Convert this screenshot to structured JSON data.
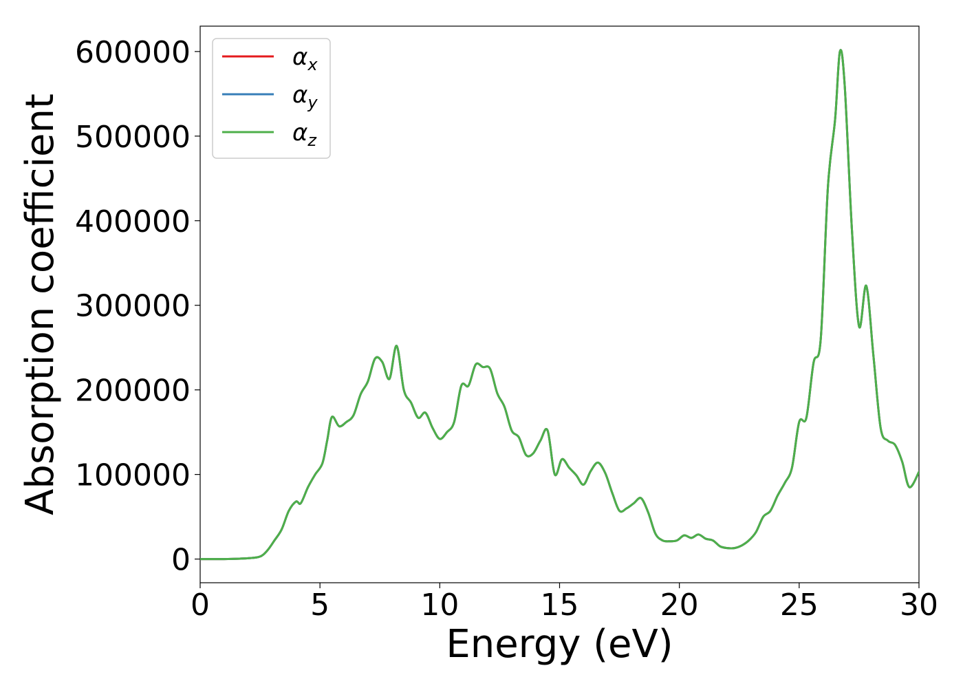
{
  "chart_data": {
    "type": "line",
    "title": "",
    "xlabel": "Energy (eV)",
    "ylabel": "Absorption coefficient",
    "xlim": [
      0,
      30
    ],
    "ylim": [
      -28000,
      630000
    ],
    "xticks": [
      0,
      5,
      10,
      15,
      20,
      25,
      30
    ],
    "xtick_labels": [
      "0",
      "5",
      "10",
      "15",
      "20",
      "25",
      "30"
    ],
    "yticks": [
      0,
      100000,
      200000,
      300000,
      400000,
      500000,
      600000
    ],
    "ytick_labels": [
      "0",
      "100000",
      "200000",
      "300000",
      "400000",
      "500000",
      "600000"
    ],
    "grid": false,
    "legend_position": "top-left",
    "x": [
      0,
      1.0,
      2.0,
      2.5,
      2.8,
      3.1,
      3.4,
      3.7,
      4.0,
      4.2,
      4.5,
      4.8,
      5.1,
      5.3,
      5.5,
      5.8,
      6.1,
      6.4,
      6.7,
      7.0,
      7.3,
      7.6,
      7.9,
      8.2,
      8.5,
      8.8,
      9.1,
      9.4,
      9.7,
      10.0,
      10.3,
      10.6,
      10.9,
      11.2,
      11.5,
      11.8,
      12.1,
      12.4,
      12.7,
      13.0,
      13.3,
      13.6,
      13.9,
      14.2,
      14.5,
      14.8,
      15.1,
      15.4,
      15.7,
      16.0,
      16.3,
      16.6,
      16.9,
      17.2,
      17.5,
      17.8,
      18.1,
      18.4,
      18.7,
      19.0,
      19.3,
      19.6,
      19.9,
      20.2,
      20.5,
      20.8,
      21.1,
      21.4,
      21.7,
      22.0,
      22.3,
      22.6,
      22.9,
      23.2,
      23.5,
      23.8,
      24.1,
      24.4,
      24.7,
      25.0,
      25.3,
      25.6,
      25.9,
      26.2,
      26.5,
      26.7,
      26.9,
      27.2,
      27.5,
      27.8,
      28.1,
      28.4,
      28.7,
      29.0,
      29.3,
      29.6,
      30.0
    ],
    "series": [
      {
        "name": "α_x",
        "color": "#e41a1c",
        "values": [
          0,
          0,
          1000,
          3000,
          10000,
          22000,
          35000,
          57000,
          68000,
          66000,
          85000,
          100000,
          113000,
          140000,
          168000,
          157000,
          162000,
          170000,
          195000,
          210000,
          237000,
          233000,
          213000,
          252000,
          200000,
          185000,
          167000,
          173000,
          155000,
          142000,
          150000,
          162000,
          205000,
          205000,
          230000,
          227000,
          225000,
          196000,
          180000,
          152000,
          144000,
          123000,
          125000,
          140000,
          152000,
          100000,
          118000,
          108000,
          99000,
          88000,
          104000,
          114000,
          102000,
          78000,
          57000,
          60000,
          66000,
          72000,
          55000,
          30000,
          22000,
          21000,
          22000,
          28000,
          25000,
          29000,
          24000,
          22000,
          15000,
          13000,
          13000,
          16000,
          22000,
          32000,
          50000,
          57000,
          75000,
          90000,
          108000,
          162000,
          167000,
          232000,
          260000,
          440000,
          520000,
          600000,
          560000,
          390000,
          275000,
          323000,
          240000,
          155000,
          140000,
          135000,
          115000,
          85000,
          103000
        ]
      },
      {
        "name": "α_y",
        "color": "#377eb8",
        "values": [
          0,
          0,
          1000,
          3000,
          10000,
          22000,
          35000,
          57000,
          68000,
          66000,
          85000,
          100000,
          113000,
          140000,
          168000,
          157000,
          162000,
          170000,
          195000,
          210000,
          237000,
          233000,
          213000,
          252000,
          200000,
          185000,
          167000,
          173000,
          155000,
          142000,
          150000,
          162000,
          205000,
          205000,
          230000,
          227000,
          225000,
          196000,
          180000,
          152000,
          144000,
          123000,
          125000,
          140000,
          152000,
          100000,
          118000,
          108000,
          99000,
          88000,
          104000,
          114000,
          102000,
          78000,
          57000,
          60000,
          66000,
          72000,
          55000,
          30000,
          22000,
          21000,
          22000,
          28000,
          25000,
          29000,
          24000,
          22000,
          15000,
          13000,
          13000,
          16000,
          22000,
          32000,
          50000,
          57000,
          75000,
          90000,
          108000,
          162000,
          167000,
          232000,
          260000,
          440000,
          520000,
          600000,
          560000,
          390000,
          275000,
          323000,
          240000,
          155000,
          140000,
          135000,
          115000,
          85000,
          103000
        ]
      },
      {
        "name": "α_z",
        "color": "#4daf4a",
        "values": [
          0,
          0,
          1000,
          3000,
          10000,
          22000,
          35000,
          57000,
          68000,
          66000,
          85000,
          100000,
          113000,
          140000,
          168000,
          157000,
          162000,
          170000,
          195000,
          210000,
          237000,
          233000,
          213000,
          252000,
          200000,
          185000,
          167000,
          173000,
          155000,
          142000,
          150000,
          162000,
          205000,
          205000,
          230000,
          227000,
          225000,
          196000,
          180000,
          152000,
          144000,
          123000,
          125000,
          140000,
          152000,
          100000,
          118000,
          108000,
          99000,
          88000,
          104000,
          114000,
          102000,
          78000,
          57000,
          60000,
          66000,
          72000,
          55000,
          30000,
          22000,
          21000,
          22000,
          28000,
          25000,
          29000,
          24000,
          22000,
          15000,
          13000,
          13000,
          16000,
          22000,
          32000,
          50000,
          57000,
          75000,
          90000,
          108000,
          162000,
          167000,
          232000,
          260000,
          440000,
          520000,
          600000,
          560000,
          390000,
          275000,
          323000,
          240000,
          155000,
          140000,
          135000,
          115000,
          85000,
          103000
        ]
      }
    ]
  }
}
